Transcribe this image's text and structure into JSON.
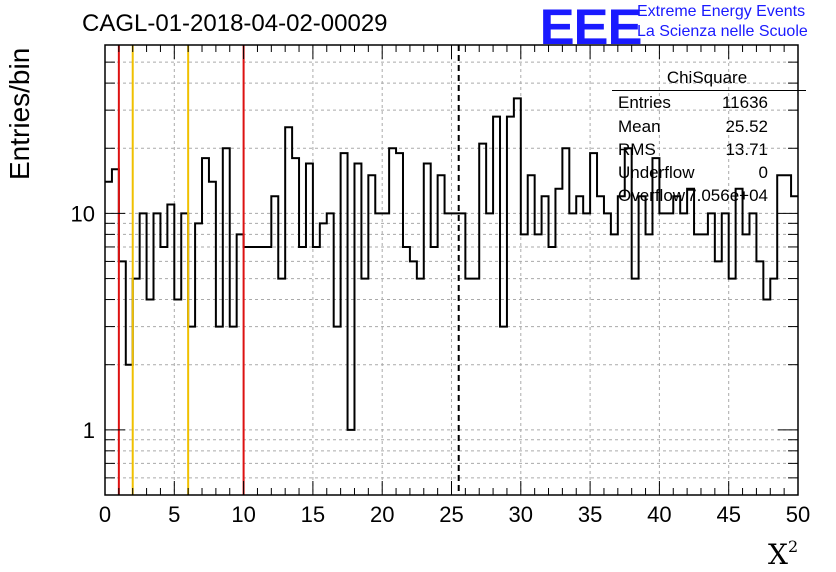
{
  "chart_data": {
    "type": "histogram",
    "title": "CAGL-01-2018-04-02-00029",
    "xlabel": "X",
    "xlabel_sup": "2",
    "ylabel": "Entries/bin",
    "xlim": [
      0,
      50
    ],
    "ylim": [
      0.5,
      60
    ],
    "yscale": "log",
    "grid": true,
    "x_ticks": [
      "0",
      "5",
      "10",
      "15",
      "20",
      "25",
      "30",
      "35",
      "40",
      "45",
      "50"
    ],
    "y_ticks": [
      {
        "value": 1,
        "label": "1"
      },
      {
        "value": 10,
        "label": "10"
      }
    ],
    "bin_width": 0.5,
    "bins_start": 0,
    "values": [
      14,
      16,
      6,
      2,
      5,
      10,
      4,
      10,
      7,
      11,
      4,
      10,
      3,
      9,
      18,
      14,
      3,
      20,
      3,
      8,
      7,
      7,
      7,
      7,
      12,
      5,
      25,
      18,
      7,
      17,
      7,
      9,
      10,
      3,
      19,
      1,
      17,
      5,
      15,
      10,
      10,
      20,
      19,
      7,
      6,
      5,
      17,
      7,
      15,
      10,
      10,
      10,
      5,
      5,
      21,
      10,
      28,
      3,
      28,
      34,
      8,
      15,
      8,
      12,
      7,
      13,
      20,
      10,
      12,
      10,
      19,
      12,
      10,
      8,
      12,
      20,
      5,
      12,
      8,
      18,
      10,
      10,
      12,
      10,
      13,
      8,
      8,
      10,
      6,
      10,
      5,
      13,
      8,
      10,
      6,
      4,
      5,
      15,
      15,
      12
    ],
    "vertical_lines": [
      {
        "x": 1,
        "color": "#dd1111",
        "style": "solid"
      },
      {
        "x": 2,
        "color": "#f0c000",
        "style": "solid"
      },
      {
        "x": 6,
        "color": "#f0c000",
        "style": "solid"
      },
      {
        "x": 10,
        "color": "#dd1111",
        "style": "solid"
      },
      {
        "x": 25.52,
        "color": "#000000",
        "style": "dashed"
      }
    ],
    "stats": {
      "title": "ChiSquare",
      "rows": [
        {
          "label": "Entries",
          "value": "11636"
        },
        {
          "label": "Mean",
          "value": "25.52"
        },
        {
          "label": "RMS",
          "value": "13.71"
        },
        {
          "label": "Underflow",
          "value": "0"
        },
        {
          "label": "Overflow",
          "value": "7.056e+04"
        }
      ]
    }
  },
  "logo": {
    "mark": "EEE",
    "line1": "Extreme Energy Events",
    "line2": "La Scienza nelle Scuole",
    "color": "#1a1aff"
  }
}
